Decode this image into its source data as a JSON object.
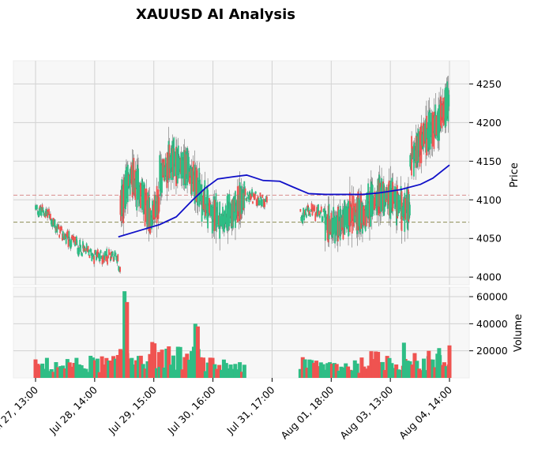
{
  "chart_data": {
    "type": "candlestick",
    "title": "XAUUSD AI Analysis",
    "price_axis": {
      "label": "Price",
      "range": [
        3990,
        4280
      ],
      "ticks": [
        4000,
        4050,
        4100,
        4150,
        4200,
        4250
      ]
    },
    "volume_axis": {
      "label": "Volume",
      "range": [
        0,
        67000
      ],
      "ticks": [
        20000,
        40000,
        60000
      ]
    },
    "x_tick_labels": [
      "Jul 27, 13:00",
      "Jul 28, 14:00",
      "Jul 29, 15:00",
      "Jul 30, 16:00",
      "Jul 31, 17:00",
      "Aug 01, 18:00",
      "Aug 03, 13:00",
      "Aug 04, 14:00"
    ],
    "reference_lines": [
      {
        "value": 4106,
        "color": "#d98c8c",
        "style": "dashed"
      },
      {
        "value": 4071,
        "color": "#8c8c55",
        "style": "dashed"
      }
    ],
    "moving_average": {
      "color": "#1010c8",
      "points": [
        [
          2.0,
          4052
        ],
        [
          2.5,
          4060
        ],
        [
          3.0,
          4068
        ],
        [
          3.4,
          4078
        ],
        [
          3.8,
          4100
        ],
        [
          4.1,
          4115
        ],
        [
          4.4,
          4127
        ],
        [
          4.8,
          4130
        ],
        [
          5.1,
          4132
        ],
        [
          5.5,
          4125
        ],
        [
          5.9,
          4124
        ],
        [
          6.2,
          4117
        ],
        [
          6.6,
          4108
        ],
        [
          7.0,
          4107
        ],
        [
          7.5,
          4107
        ],
        [
          7.9,
          4107
        ],
        [
          8.3,
          4109
        ],
        [
          8.8,
          4113
        ],
        [
          9.3,
          4120
        ],
        [
          9.6,
          4128
        ],
        [
          10.0,
          4145
        ]
      ]
    },
    "candle_segments": [
      {
        "from": 0.0,
        "to": 1.0,
        "path": [
          [
            0.0,
            4088
          ],
          [
            0.3,
            4082
          ],
          [
            0.55,
            4060
          ],
          [
            0.8,
            4048
          ],
          [
            1.0,
            4045
          ]
        ]
      },
      {
        "from": 1.0,
        "to": 2.05,
        "path": [
          [
            1.0,
            4040
          ],
          [
            1.3,
            4030
          ],
          [
            1.6,
            4026
          ],
          [
            1.9,
            4030
          ],
          [
            2.05,
            4010
          ]
        ]
      },
      {
        "from": 2.05,
        "to": 3.0,
        "path": [
          [
            2.05,
            4090
          ],
          [
            2.3,
            4130
          ],
          [
            2.55,
            4110
          ],
          [
            2.8,
            4075
          ],
          [
            3.0,
            4100
          ]
        ]
      },
      {
        "from": 3.0,
        "to": 4.0,
        "path": [
          [
            3.0,
            4130
          ],
          [
            3.3,
            4150
          ],
          [
            3.65,
            4140
          ],
          [
            4.0,
            4110
          ]
        ]
      },
      {
        "from": 4.0,
        "to": 5.05,
        "path": [
          [
            4.0,
            4100
          ],
          [
            4.3,
            4080
          ],
          [
            4.6,
            4075
          ],
          [
            4.85,
            4090
          ],
          [
            5.05,
            4100
          ]
        ]
      },
      {
        "from": 5.05,
        "to": 5.6,
        "path": [
          [
            5.05,
            4104
          ],
          [
            5.2,
            4104
          ],
          [
            5.45,
            4101
          ],
          [
            5.6,
            4101
          ]
        ]
      },
      {
        "from": 6.4,
        "to": 7.0,
        "path": [
          [
            6.4,
            4080
          ],
          [
            6.7,
            4085
          ],
          [
            7.0,
            4080
          ]
        ]
      },
      {
        "from": 7.0,
        "to": 8.0,
        "path": [
          [
            7.0,
            4070
          ],
          [
            7.3,
            4065
          ],
          [
            7.6,
            4080
          ],
          [
            8.0,
            4082
          ]
        ]
      },
      {
        "from": 8.0,
        "to": 9.05,
        "path": [
          [
            8.0,
            4090
          ],
          [
            8.3,
            4105
          ],
          [
            8.6,
            4100
          ],
          [
            9.05,
            4085
          ]
        ]
      },
      {
        "from": 9.05,
        "to": 10.0,
        "path": [
          [
            9.05,
            4150
          ],
          [
            9.4,
            4180
          ],
          [
            9.7,
            4200
          ],
          [
            10.0,
            4230
          ]
        ]
      }
    ],
    "volume_segments": [
      {
        "from": 0.0,
        "to": 1.0,
        "base": 9000
      },
      {
        "from": 1.0,
        "to": 2.05,
        "base": 10000
      },
      {
        "from": 2.05,
        "to": 3.0,
        "base": 16000
      },
      {
        "from": 3.0,
        "to": 4.0,
        "base": 14000
      },
      {
        "from": 4.0,
        "to": 5.05,
        "base": 9000
      },
      {
        "from": 6.4,
        "to": 7.0,
        "base": 9000
      },
      {
        "from": 7.0,
        "to": 8.0,
        "base": 9000
      },
      {
        "from": 8.0,
        "to": 9.05,
        "base": 12000
      },
      {
        "from": 9.05,
        "to": 10.0,
        "base": 11000
      }
    ],
    "volume_spikes": [
      [
        2.15,
        64000
      ],
      [
        2.21,
        56000
      ],
      [
        3.86,
        40000
      ],
      [
        3.92,
        38000
      ],
      [
        8.9,
        26000
      ],
      [
        9.5,
        20000
      ],
      [
        9.75,
        22000
      ],
      [
        10.0,
        24000
      ]
    ],
    "colors": {
      "up": "#2ebd85",
      "down": "#ef5350",
      "ma": "#1010c8"
    },
    "grid": true,
    "legend": "none"
  }
}
